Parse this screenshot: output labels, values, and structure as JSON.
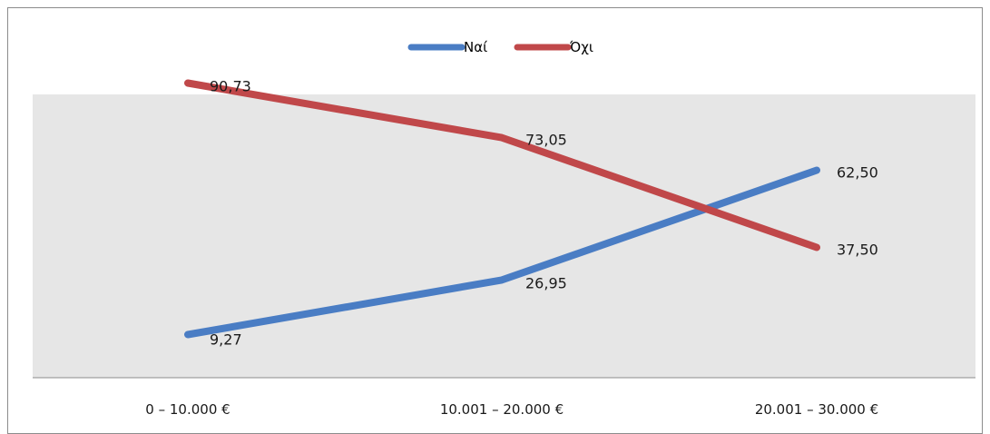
{
  "chart_data": {
    "type": "line",
    "categories": [
      "0 – 10.000 €",
      "10.001 – 20.000 €",
      "20.001 – 30.000 €"
    ],
    "series": [
      {
        "name": "Ναί",
        "color": "#4a7dc4",
        "values": [
          9.27,
          26.95,
          62.5
        ],
        "labels": [
          "9,27",
          "26,95",
          "62,50"
        ]
      },
      {
        "name": "Όχι",
        "color": "#c0484a",
        "values": [
          90.73,
          73.05,
          37.5
        ],
        "labels": [
          "90,73",
          "73,05",
          "37,50"
        ]
      }
    ],
    "ylim": [
      0,
      100
    ],
    "legend_position": "top-center",
    "plot_background": "#e6e6e6",
    "grid": false
  }
}
